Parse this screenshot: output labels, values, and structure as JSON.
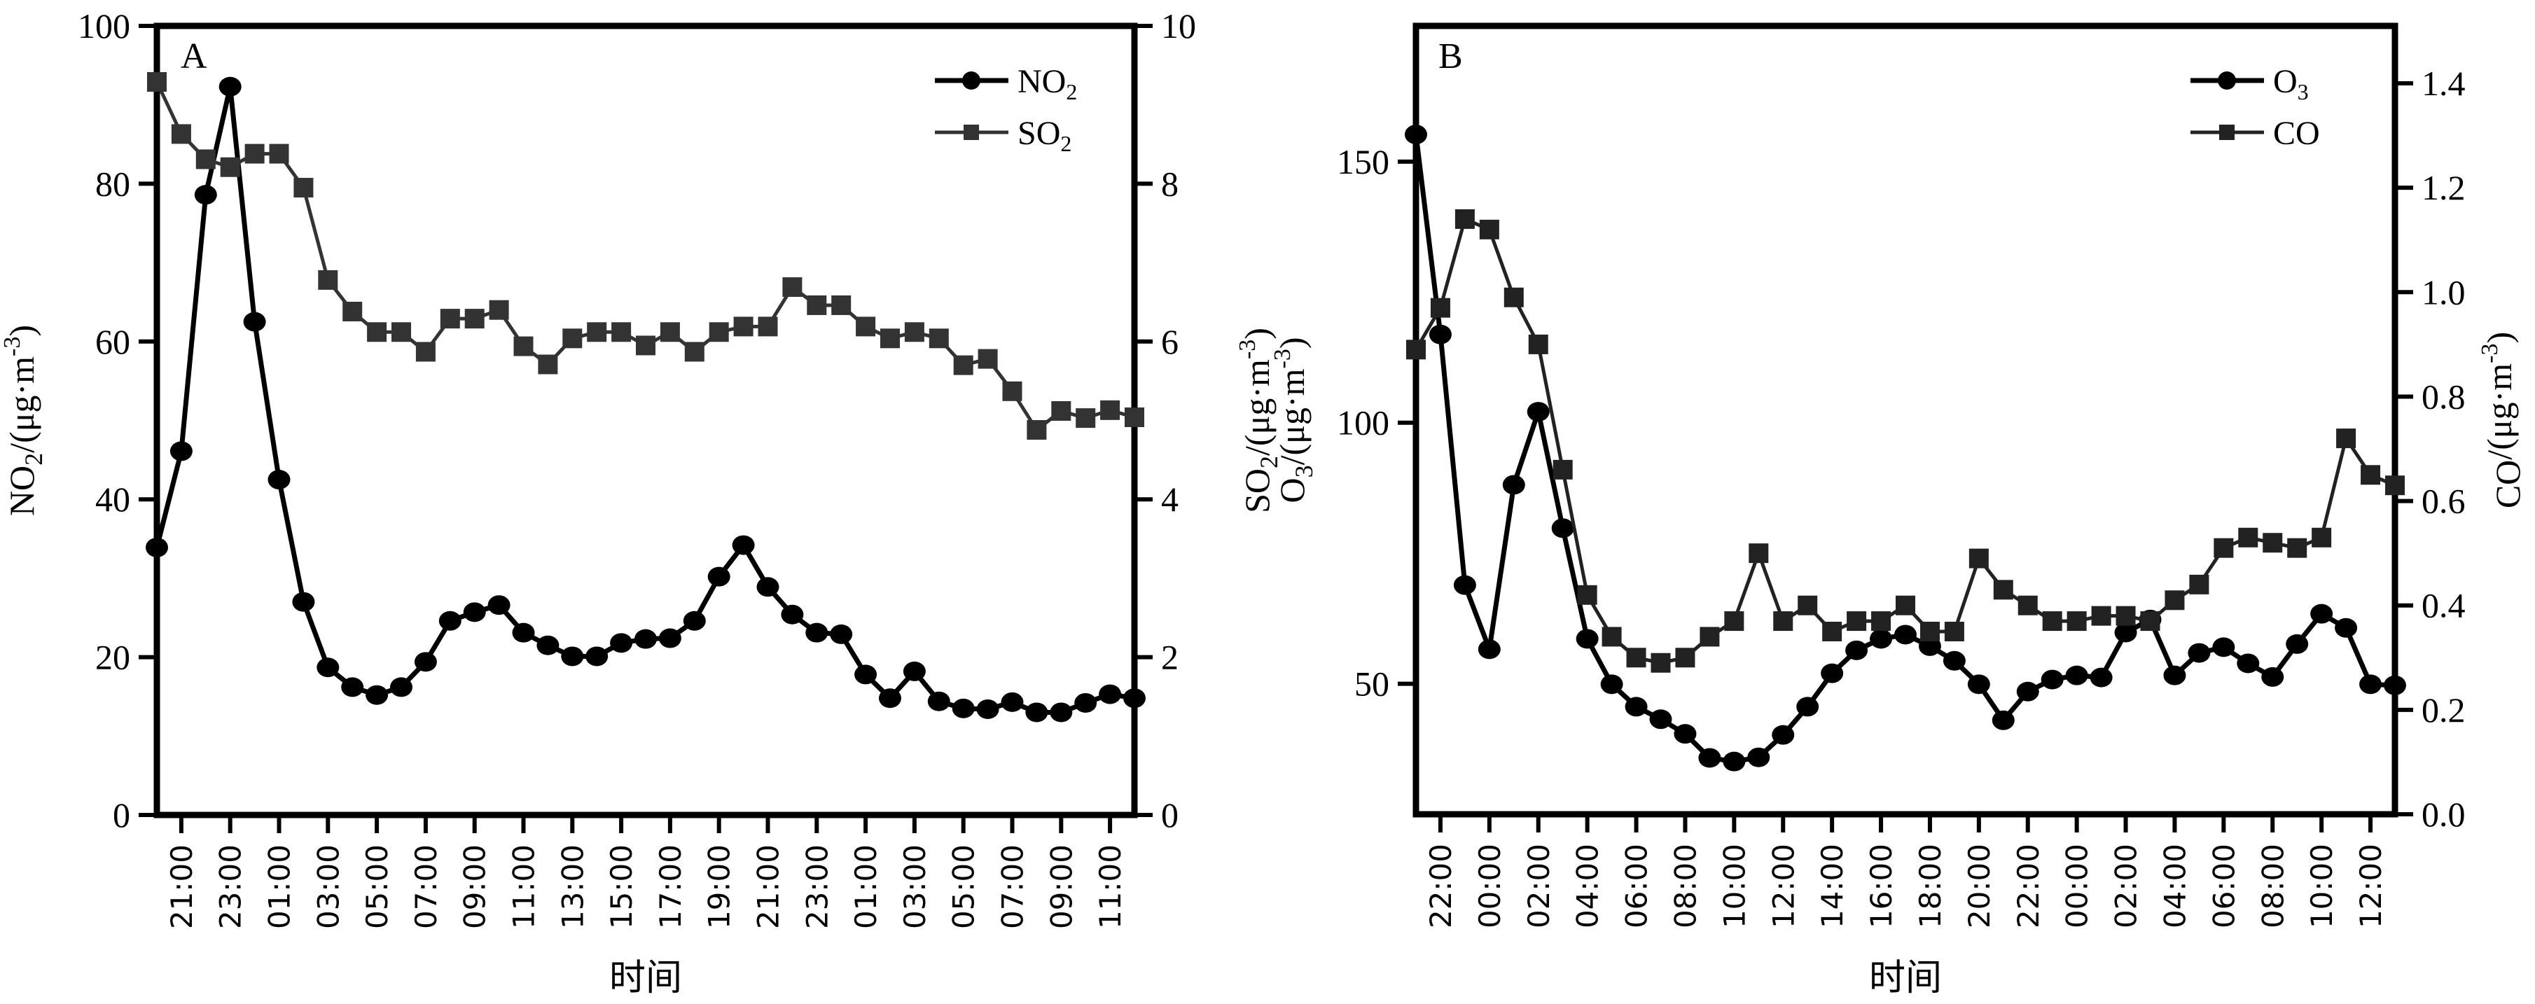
{
  "chart_data": [
    {
      "type": "line",
      "panel_label": "A",
      "xlabel": "时间",
      "x": [
        "20:00",
        "21:00",
        "22:00",
        "23:00",
        "00:00",
        "01:00",
        "02:00",
        "03:00",
        "04:00",
        "05:00",
        "06:00",
        "07:00",
        "08:00",
        "09:00",
        "10:00",
        "11:00",
        "12:00",
        "13:00",
        "14:00",
        "15:00",
        "16:00",
        "17:00",
        "18:00",
        "19:00",
        "20:00",
        "21:00",
        "22:00",
        "23:00",
        "00:00",
        "01:00",
        "02:00",
        "03:00",
        "04:00",
        "05:00",
        "06:00",
        "07:00",
        "08:00",
        "09:00",
        "10:00",
        "11:00",
        "12:00"
      ],
      "xtick_labels": [
        "21:00",
        "23:00",
        "01:00",
        "03:00",
        "05:00",
        "07:00",
        "09:00",
        "11:00",
        "13:00",
        "15:00",
        "17:00",
        "19:00",
        "21:00",
        "23:00",
        "01:00",
        "03:00",
        "05:00",
        "07:00",
        "09:00",
        "11:00"
      ],
      "y_left": {
        "label_main": "NO",
        "label_sub": "2",
        "label_rest": "/(μg·m",
        "label_sup": "-3",
        "label_close": ")",
        "ylim": [
          0,
          100
        ],
        "ticks": [
          "0",
          "20",
          "40",
          "60",
          "80",
          "100"
        ],
        "tick_values": [
          0,
          20,
          40,
          60,
          80,
          100
        ]
      },
      "y_right": {
        "label_main": "SO",
        "label_sub": "2",
        "label_rest": "/(μg·m",
        "label_sup": "-3",
        "label_close": ")",
        "ylim": [
          0,
          10
        ],
        "ticks": [
          "0",
          "2",
          "4",
          "6",
          "8",
          "10"
        ],
        "tick_values": [
          0,
          2,
          4,
          6,
          8,
          10
        ]
      },
      "legend_position": "top-right",
      "series": [
        {
          "name": "NO2",
          "legend_main": "NO",
          "legend_sub": "2",
          "axis": "left",
          "marker": "circle",
          "color": "#000000",
          "values": [
            33.9,
            46.1,
            78.6,
            92.3,
            62.5,
            42.5,
            27.0,
            18.7,
            16.2,
            15.2,
            16.2,
            19.4,
            24.6,
            25.7,
            26.6,
            23.1,
            21.5,
            20.1,
            20.1,
            21.8,
            22.3,
            22.4,
            24.6,
            30.2,
            34.2,
            28.9,
            25.4,
            23.1,
            22.9,
            17.8,
            14.8,
            18.2,
            14.4,
            13.5,
            13.4,
            14.3,
            13.0,
            13.0,
            14.2,
            15.3,
            14.8
          ]
        },
        {
          "name": "SO2",
          "legend_main": "SO",
          "legend_sub": "2",
          "axis": "right",
          "marker": "square",
          "color": "#333333",
          "values": [
            9.29,
            8.63,
            8.31,
            8.21,
            8.38,
            8.38,
            7.95,
            6.78,
            6.38,
            6.12,
            6.12,
            5.87,
            6.29,
            6.29,
            6.4,
            5.94,
            5.71,
            6.04,
            6.12,
            6.12,
            5.95,
            6.12,
            5.87,
            6.12,
            6.19,
            6.19,
            6.69,
            6.46,
            6.46,
            6.19,
            6.04,
            6.12,
            6.04,
            5.7,
            5.78,
            5.37,
            4.88,
            5.12,
            5.03,
            5.13,
            5.04
          ]
        }
      ]
    },
    {
      "type": "line",
      "panel_label": "B",
      "xlabel": "时间",
      "x": [
        "21:00",
        "22:00",
        "23:00",
        "00:00",
        "01:00",
        "02:00",
        "03:00",
        "04:00",
        "05:00",
        "06:00",
        "07:00",
        "08:00",
        "09:00",
        "10:00",
        "11:00",
        "12:00",
        "13:00",
        "14:00",
        "15:00",
        "16:00",
        "17:00",
        "18:00",
        "19:00",
        "20:00",
        "21:00",
        "22:00",
        "23:00",
        "00:00",
        "01:00",
        "02:00",
        "03:00",
        "04:00",
        "05:00",
        "06:00",
        "07:00",
        "08:00",
        "09:00",
        "10:00",
        "11:00",
        "12:00",
        "13:00"
      ],
      "xtick_labels": [
        "22:00",
        "00:00",
        "02:00",
        "04:00",
        "06:00",
        "08:00",
        "10:00",
        "12:00",
        "14:00",
        "16:00",
        "18:00",
        "20:00",
        "22:00",
        "00:00",
        "02:00",
        "04:00",
        "06:00",
        "08:00",
        "10:00",
        "12:00"
      ],
      "y_left": {
        "label_main": "O",
        "label_sub": "3",
        "label_rest": "/(μg·m",
        "label_sup": "-3",
        "label_close": ")",
        "ylim": [
          25,
          176
        ],
        "ticks": [
          "50",
          "100",
          "150"
        ],
        "tick_values": [
          50,
          100,
          150
        ]
      },
      "y_right": {
        "label_main": "CO",
        "label_sub": "",
        "label_rest": "/(μg·m",
        "label_sup": "-3",
        "label_close": ")",
        "ylim": [
          0,
          1.51
        ],
        "ticks": [
          "0.0",
          "0.2",
          "0.4",
          "0.6",
          "0.8",
          "1.0",
          "1.2",
          "1.4"
        ],
        "tick_values": [
          0,
          0.2,
          0.4,
          0.6,
          0.8,
          1.0,
          1.2,
          1.4
        ]
      },
      "legend_position": "top-right",
      "series": [
        {
          "name": "O3",
          "legend_main": "O",
          "legend_sub": "3",
          "axis": "left",
          "marker": "circle",
          "color": "#000000",
          "values": [
            155.2,
            116.9,
            68.9,
            56.6,
            88.1,
            102.1,
            79.8,
            58.6,
            49.9,
            45.6,
            43.2,
            40.4,
            35.8,
            35.1,
            35.9,
            40.2,
            45.6,
            52.0,
            56.4,
            58.6,
            59.4,
            57.2,
            54.4,
            49.9,
            43.0,
            48.5,
            50.8,
            51.6,
            51.2,
            59.8,
            62.3,
            51.6,
            55.9,
            57.0,
            53.9,
            51.3,
            57.6,
            63.4,
            60.7,
            49.9,
            49.7
          ]
        },
        {
          "name": "CO",
          "legend_main": "CO",
          "legend_sub": "",
          "axis": "right",
          "marker": "square",
          "color": "#222222",
          "values": [
            0.89,
            0.97,
            1.14,
            1.12,
            0.99,
            0.9,
            0.66,
            0.42,
            0.34,
            0.3,
            0.29,
            0.3,
            0.34,
            0.37,
            0.5,
            0.37,
            0.4,
            0.35,
            0.37,
            0.37,
            0.4,
            0.35,
            0.35,
            0.49,
            0.43,
            0.4,
            0.37,
            0.37,
            0.38,
            0.38,
            0.37,
            0.41,
            0.44,
            0.51,
            0.53,
            0.52,
            0.51,
            0.53,
            0.72,
            0.65,
            0.63
          ]
        }
      ]
    }
  ]
}
